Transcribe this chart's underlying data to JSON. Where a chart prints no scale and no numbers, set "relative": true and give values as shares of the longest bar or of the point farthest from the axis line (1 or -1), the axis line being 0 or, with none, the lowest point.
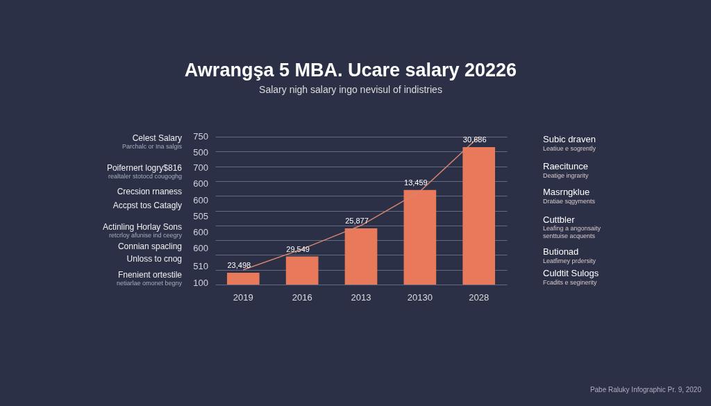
{
  "chart_data": {
    "type": "bar",
    "title": "Awrangşa 5 MBA. Ucare salary 20226",
    "subtitle": "Salary nigh salary ingo nevisul of indistries",
    "categories": [
      "2019",
      "2016",
      "2013",
      "20130",
      "2028"
    ],
    "relative": true,
    "grid": "y",
    "series": [
      {
        "color": "#e8795a",
        "values": [
          0.08,
          0.19,
          0.38,
          0.64,
          0.93
        ]
      },
      {
        "type": "line",
        "color": "#d98570",
        "line_style": "solid",
        "values": [
          0.1,
          0.24,
          0.4,
          0.63,
          1.0
        ]
      }
    ],
    "annotations": [
      "Celest Salary",
      "Parchalc or Ina salgis",
      "Poifernert logry$816",
      "realtaler stotocd cougoghg",
      "Crecsion rnaness",
      "Accpst tos Catagly",
      "Actinling Horlay Sons",
      "retcrloy afunise ind ceegry",
      "Connian spacling",
      "Unloss to cnog",
      "Fnenient ortestile",
      "netiarlae omonet begny",
      "750",
      "500",
      "700",
      "600",
      "600",
      "505",
      "600",
      "600",
      "510",
      "100",
      "Subic draven",
      "Leatiue e sogrently",
      "Raecitunce",
      "Deatige ingrarity",
      "Masrngklue",
      "Dratiae sqgyments",
      "Cuttbler",
      "Leafing a angonsaity",
      "senttuise acquents",
      "Butionad",
      "Leatfimey prdersity",
      "Culdtit Sulogs",
      "Fcadits e seginerity",
      "Pabe Raluky Infographic Pr. 9, 2020",
      {
        "text": "23,498",
        "x": "2019",
        "y": 0.08
      },
      {
        "text": "29,549",
        "x": "2016",
        "y": 0.19
      },
      {
        "text": "25,877",
        "x": "2013",
        "y": 0.38
      },
      {
        "text": "13,459",
        "x": "20130",
        "y": 0.64
      },
      {
        "text": "30,686",
        "x": "2028",
        "y": 0.93
      }
    ]
  }
}
